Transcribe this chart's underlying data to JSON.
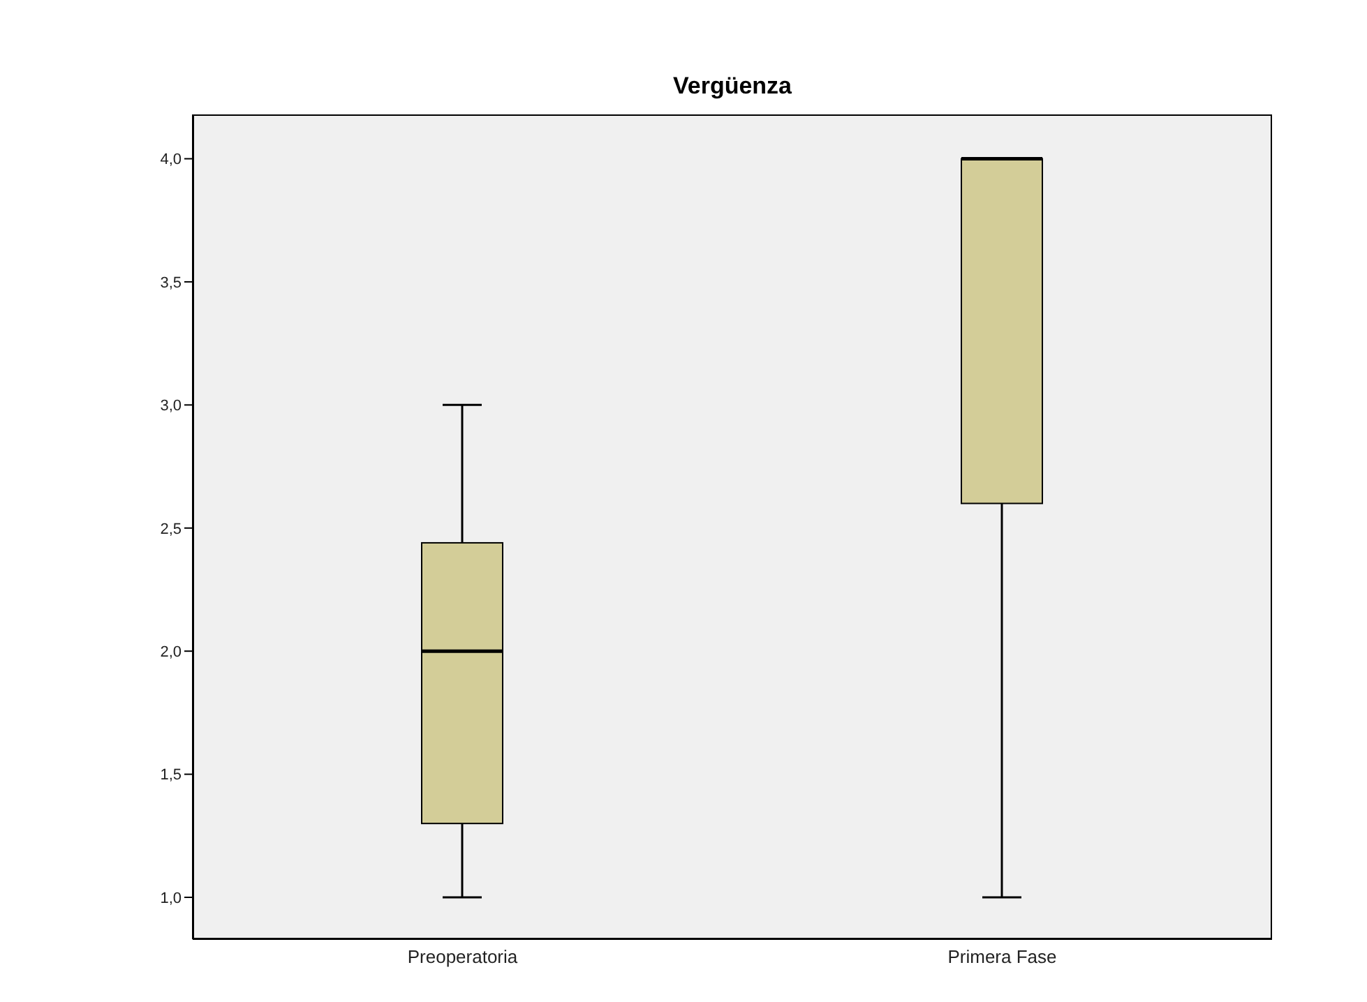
{
  "chart_data": {
    "type": "box",
    "title": "Vergüenza",
    "categories": [
      "Preoperatoria",
      "Primera Fase"
    ],
    "color": "#d3cd98",
    "boxes": [
      {
        "low": 1.0,
        "q1": 1.3,
        "median": 2.0,
        "q3": 2.44,
        "high": 3.0
      },
      {
        "low": 1.0,
        "q1": 2.6,
        "median": 4.0,
        "q3": 4.0,
        "high": 4.0
      }
    ],
    "ylim": [
      0.83,
      4.18
    ],
    "yticks": [
      {
        "value": 1,
        "label": "1,0"
      },
      {
        "value": 1.5,
        "label": "1,5"
      },
      {
        "value": 2,
        "label": "2,0"
      },
      {
        "value": 2.5,
        "label": "2,5"
      },
      {
        "value": 3,
        "label": "3,0"
      },
      {
        "value": 3.5,
        "label": "3,5"
      },
      {
        "value": 4,
        "label": "4,0"
      }
    ]
  }
}
